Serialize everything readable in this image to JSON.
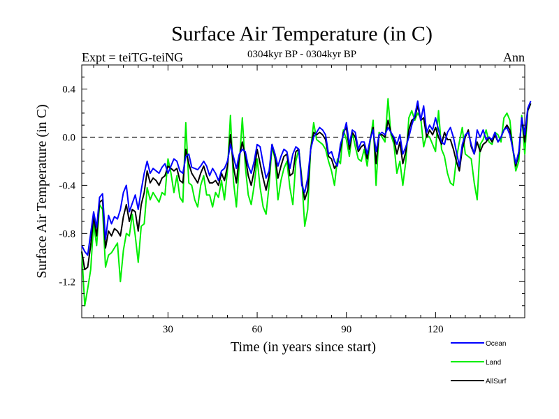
{
  "chart_data": {
    "type": "line",
    "title": "Surface Air Temperature (in C)",
    "subtitle": "0304kyr BP - 0304kyr BP",
    "left_label": "Expt = teiTG-teiNG",
    "right_label": "Ann",
    "xlabel": "Time (in years since start)",
    "ylabel": "Surface Air Temperature (in C)",
    "xlim": [
      1,
      150
    ],
    "ylim": [
      -1.5,
      0.6
    ],
    "xticks": [
      30,
      60,
      90,
      120
    ],
    "xtick_labels": [
      "30",
      "60",
      "90",
      "120"
    ],
    "yticks": [
      -1.2,
      -0.8,
      -0.4,
      0.0,
      0.4
    ],
    "ytick_labels": [
      "-1.2",
      "-0.8",
      "-0.4",
      "0.0",
      "0.4"
    ],
    "reference_line": 0.0,
    "legend_position": "bottom-right",
    "series": [
      {
        "name": "Ocean",
        "color": "#0000ff",
        "width": 2,
        "x_start": 1,
        "values": [
          -0.9,
          -0.95,
          -0.98,
          -0.8,
          -0.62,
          -0.75,
          -0.5,
          -0.47,
          -0.85,
          -0.65,
          -0.72,
          -0.66,
          -0.68,
          -0.6,
          -0.46,
          -0.4,
          -0.62,
          -0.55,
          -0.48,
          -0.6,
          -0.44,
          -0.3,
          -0.2,
          -0.3,
          -0.26,
          -0.28,
          -0.3,
          -0.25,
          -0.22,
          -0.3,
          -0.24,
          -0.18,
          -0.2,
          -0.28,
          -0.3,
          -0.16,
          -0.14,
          -0.25,
          -0.26,
          -0.27,
          -0.24,
          -0.2,
          -0.24,
          -0.32,
          -0.26,
          -0.3,
          -0.36,
          -0.28,
          -0.26,
          -0.2,
          -0.06,
          -0.16,
          -0.26,
          -0.14,
          -0.1,
          -0.12,
          -0.24,
          -0.3,
          -0.2,
          -0.06,
          -0.08,
          -0.22,
          -0.34,
          -0.28,
          -0.06,
          -0.14,
          -0.24,
          -0.16,
          -0.1,
          -0.12,
          -0.26,
          -0.14,
          -0.08,
          -0.1,
          -0.4,
          -0.46,
          -0.34,
          -0.1,
          0.0,
          0.04,
          0.08,
          0.06,
          0.02,
          -0.14,
          -0.12,
          -0.2,
          -0.24,
          -0.06,
          0.02,
          0.12,
          -0.06,
          0.06,
          0.04,
          -0.1,
          -0.04,
          -0.04,
          -0.14,
          -0.02,
          0.06,
          -0.12,
          0.02,
          0.04,
          0.02,
          0.08,
          0.04,
          0.0,
          -0.06,
          0.02,
          -0.14,
          -0.08,
          0.0,
          0.1,
          0.18,
          0.3,
          0.14,
          0.26,
          0.04,
          0.1,
          0.06,
          0.16,
          0.06,
          -0.04,
          -0.06,
          0.04,
          0.08,
          0.0,
          -0.12,
          -0.24,
          -0.06,
          0.02,
          0.04,
          -0.06,
          -0.14,
          0.06,
          0.0,
          0.06,
          -0.02,
          0.0,
          -0.02,
          0.04,
          -0.04,
          0.0,
          0.06,
          0.08,
          0.02,
          -0.1,
          -0.22,
          -0.12,
          0.16,
          0.02,
          0.24,
          0.3
        ]
      },
      {
        "name": "Land",
        "color": "#00ee00",
        "width": 2,
        "x_start": 1,
        "values": [
          -0.95,
          -1.4,
          -1.26,
          -1.1,
          -0.72,
          -0.9,
          -0.56,
          -0.6,
          -1.08,
          -0.98,
          -0.96,
          -0.92,
          -0.88,
          -1.2,
          -0.94,
          -0.8,
          -0.82,
          -0.64,
          -0.82,
          -1.04,
          -0.74,
          -0.72,
          -0.42,
          -0.52,
          -0.46,
          -0.5,
          -0.54,
          -0.46,
          -0.48,
          -0.18,
          -0.3,
          -0.46,
          -0.32,
          -0.5,
          -0.54,
          0.12,
          -0.38,
          -0.4,
          -0.52,
          -0.58,
          -0.4,
          -0.32,
          -0.48,
          -0.48,
          -0.58,
          -0.46,
          -0.5,
          -0.36,
          -0.52,
          -0.28,
          0.18,
          -0.36,
          -0.58,
          -0.22,
          0.16,
          -0.24,
          -0.48,
          -0.56,
          -0.4,
          -0.18,
          -0.42,
          -0.58,
          -0.64,
          -0.4,
          -0.08,
          -0.18,
          -0.52,
          -0.36,
          -0.26,
          -0.2,
          -0.42,
          -0.56,
          -0.2,
          -0.1,
          -0.34,
          -0.74,
          -0.6,
          -0.1,
          0.12,
          -0.02,
          -0.04,
          -0.06,
          -0.1,
          -0.2,
          -0.28,
          -0.4,
          -0.18,
          -0.22,
          0.06,
          -0.02,
          -0.16,
          0.04,
          -0.08,
          -0.18,
          -0.2,
          -0.1,
          -0.24,
          -0.04,
          0.14,
          -0.4,
          0.04,
          0.0,
          -0.04,
          0.32,
          0.02,
          -0.06,
          -0.3,
          -0.2,
          -0.4,
          -0.2,
          0.16,
          0.22,
          0.14,
          0.2,
          0.16,
          -0.08,
          0.02,
          0.0,
          -0.06,
          -0.12,
          0.22,
          -0.1,
          -0.16,
          -0.3,
          -0.38,
          -0.4,
          -0.18,
          -0.04,
          0.08,
          -0.14,
          -0.16,
          -0.18,
          -0.38,
          -0.52,
          -0.06,
          -0.02,
          0.06,
          -0.04,
          -0.06,
          0.04,
          0.02,
          -0.04,
          0.16,
          0.2,
          0.14,
          -0.1,
          -0.28,
          -0.2,
          0.18,
          -0.14,
          0.22,
          0.28
        ]
      },
      {
        "name": "AllSurf",
        "color": "#000000",
        "width": 2,
        "x_start": 1,
        "values": [
          -0.95,
          -1.1,
          -1.08,
          -0.9,
          -0.66,
          -0.82,
          -0.54,
          -0.52,
          -0.92,
          -0.78,
          -0.82,
          -0.76,
          -0.78,
          -0.82,
          -0.66,
          -0.56,
          -0.7,
          -0.6,
          -0.62,
          -0.78,
          -0.56,
          -0.46,
          -0.28,
          -0.38,
          -0.34,
          -0.36,
          -0.4,
          -0.34,
          -0.32,
          -0.24,
          -0.26,
          -0.28,
          -0.26,
          -0.36,
          -0.38,
          -0.1,
          -0.22,
          -0.3,
          -0.34,
          -0.38,
          -0.3,
          -0.24,
          -0.32,
          -0.38,
          -0.38,
          -0.36,
          -0.4,
          -0.3,
          -0.36,
          -0.24,
          0.02,
          -0.24,
          -0.38,
          -0.16,
          -0.04,
          -0.16,
          -0.32,
          -0.4,
          -0.28,
          -0.1,
          -0.22,
          -0.34,
          -0.44,
          -0.32,
          -0.06,
          -0.16,
          -0.34,
          -0.24,
          -0.16,
          -0.14,
          -0.32,
          -0.3,
          -0.12,
          -0.1,
          -0.36,
          -0.52,
          -0.44,
          -0.1,
          0.04,
          0.02,
          0.04,
          0.02,
          -0.02,
          -0.16,
          -0.18,
          -0.26,
          -0.22,
          -0.1,
          0.04,
          0.08,
          -0.1,
          0.04,
          0.0,
          -0.12,
          -0.08,
          -0.06,
          -0.18,
          -0.02,
          0.08,
          -0.22,
          0.02,
          0.02,
          0.0,
          0.14,
          0.04,
          -0.02,
          -0.14,
          -0.04,
          -0.22,
          -0.12,
          0.06,
          0.14,
          0.16,
          0.26,
          0.14,
          0.16,
          0.0,
          0.06,
          0.02,
          0.08,
          0.0,
          -0.06,
          0.04,
          -0.02,
          -0.02,
          -0.1,
          -0.2,
          -0.28,
          -0.1,
          0.0,
          0.06,
          -0.08,
          -0.14,
          -0.04,
          -0.12,
          -0.06,
          -0.04,
          0.0,
          -0.04,
          0.02,
          -0.04,
          0.0,
          0.06,
          0.1,
          0.06,
          -0.1,
          -0.24,
          -0.14,
          0.16,
          -0.04,
          0.22,
          0.28
        ]
      }
    ]
  }
}
